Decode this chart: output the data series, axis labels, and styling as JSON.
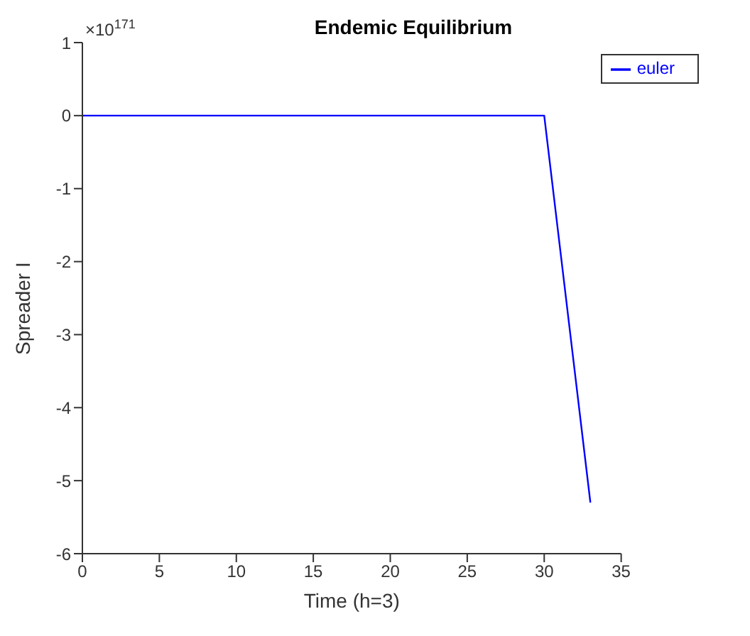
{
  "chart_data": {
    "type": "line",
    "title": "Endemic Equilibrium",
    "xlabel": "Time  (h=3)",
    "ylabel": "Spreader I",
    "annotations": [
      "×10$^{171}$"
    ],
    "x": [
      0,
      3,
      6,
      9,
      12,
      15,
      18,
      21,
      24,
      27,
      30,
      33
    ],
    "series": [
      {
        "name": "euler",
        "color": "#0000ff",
        "values": [
          0,
          0,
          0,
          0,
          0,
          0,
          0,
          0,
          0,
          0,
          0,
          -5.3
        ]
      }
    ],
    "xlim": [
      0,
      35
    ],
    "xticks": [
      0,
      5,
      10,
      15,
      20,
      25,
      30,
      35
    ],
    "ylim": [
      -6,
      1
    ],
    "yticks": [
      -6,
      -5,
      -4,
      -3,
      -2,
      -1,
      0,
      1
    ],
    "legend": "top right",
    "marker": "none",
    "line_style": "solid"
  }
}
